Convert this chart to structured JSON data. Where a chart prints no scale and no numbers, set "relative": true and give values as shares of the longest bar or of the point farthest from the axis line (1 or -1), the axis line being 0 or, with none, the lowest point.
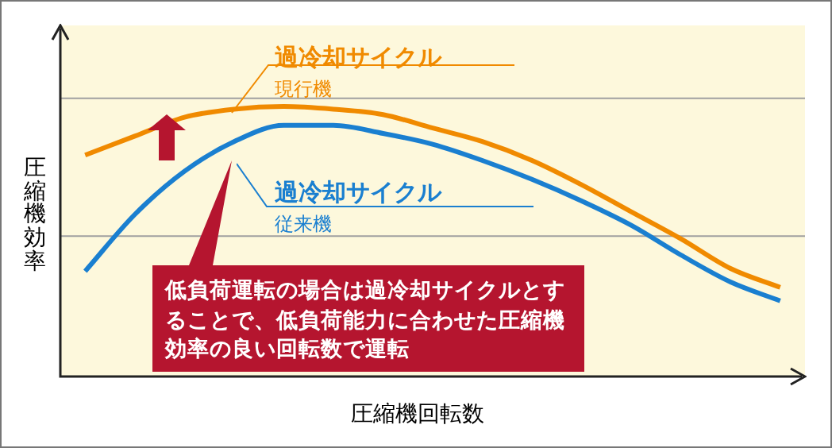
{
  "chart_data": {
    "type": "line",
    "relative": true,
    "xlabel": "圧縮機回転数",
    "ylabel": "圧縮機効率",
    "legend": false,
    "marker": "none",
    "grid": false,
    "categories": [
      null,
      null,
      null,
      null,
      null,
      null,
      null,
      null,
      null,
      null,
      null,
      null,
      null,
      null,
      null
    ],
    "series": [
      {
        "name": "現行機",
        "color": "#f08a00",
        "values": [
          0.82,
          0.89,
          0.96,
          0.99,
          1,
          0.99,
          0.97,
          0.92,
          0.87,
          0.8,
          0.71,
          0.61,
          0.51,
          0.4,
          0.33
        ]
      },
      {
        "name": "従来機",
        "color": "#1a7fd0",
        "values": [
          0.39,
          0.6,
          0.76,
          0.87,
          0.93,
          0.93,
          0.9,
          0.86,
          0.8,
          0.73,
          0.65,
          0.56,
          0.45,
          0.35,
          0.28
        ]
      }
    ],
    "ref_lines": [
      {
        "axis": "y",
        "value": 1.03,
        "color": "#a0a0a0"
      },
      {
        "axis": "y",
        "value": 0.52,
        "color": "#a0a0a0"
      }
    ],
    "annotations": [
      "過冷却サイクル",
      "過冷却サイクル",
      "低負荷運転の場合は過冷却サイクルとすることで、低負荷能力に合わせた圧縮機効率の良い回転数で運転"
    ]
  }
}
